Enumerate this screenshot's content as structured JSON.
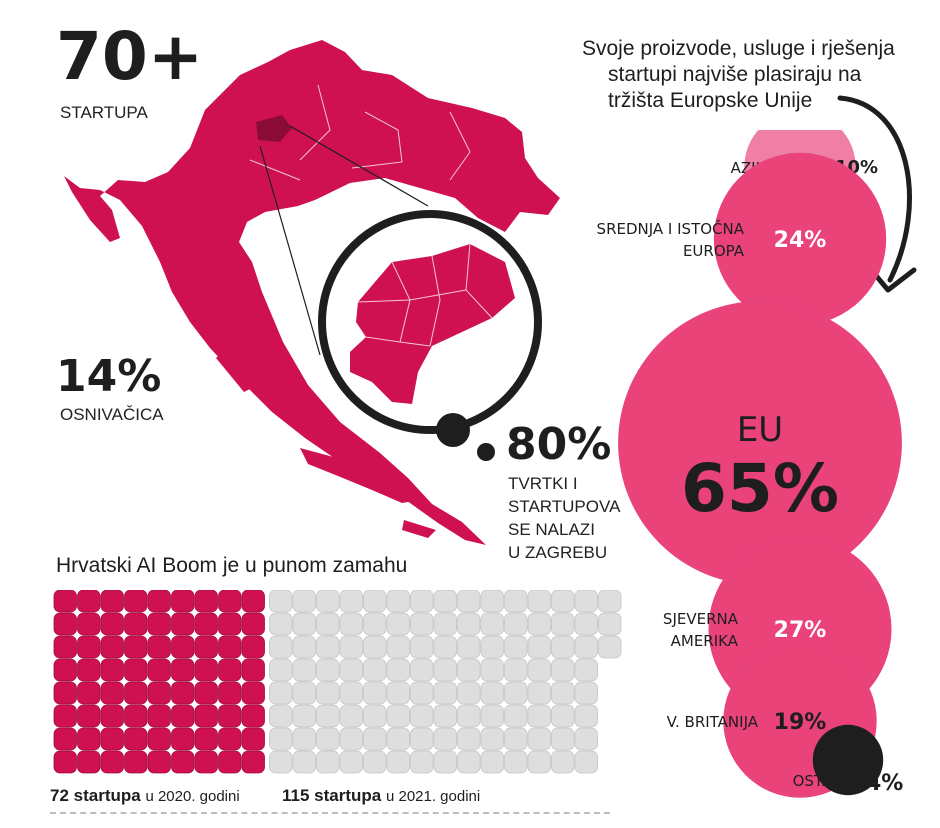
{
  "startups": {
    "value": "70+",
    "label": "STARTUPA"
  },
  "founders": {
    "value": "14%",
    "label": "OSNIVAČICA"
  },
  "zagreb": {
    "value": "80%",
    "lines": [
      "TVRTKI I",
      "STARTUPOVA",
      "SE NALAZI",
      "U ZAGREBU"
    ]
  },
  "markets_note": [
    "Svoje proizvode, usluge i rješenja",
    "startupi najviše plasiraju na",
    "tržišta Europske Unije"
  ],
  "waffle": {
    "title": "Hrvatski AI Boom je u punom zamahu"
  },
  "colors": {
    "accent": "#cf1152",
    "bubble": "#e9437a",
    "bubble_light": "#ef7fa4",
    "empty_cell": "#dedede",
    "dark": "#1e1e1e"
  },
  "chart_data": [
    {
      "type": "bubble",
      "series": [
        {
          "name": "AZIJA",
          "value": 10,
          "label": "10%",
          "label_lines": [
            "AZIJA"
          ]
        },
        {
          "name": "SREDNJA I ISTOČNA EUROPA",
          "value": 24,
          "label": "24%",
          "label_lines": [
            "SREDNJA I ISTOČNA",
            "EUROPA"
          ]
        },
        {
          "name": "EU",
          "value": 65,
          "label": "65%",
          "label_lines": [
            "EU"
          ]
        },
        {
          "name": "SJEVERNA AMERIKA",
          "value": 27,
          "label": "27%",
          "label_lines": [
            "SJEVERNA",
            "AMERIKA"
          ]
        },
        {
          "name": "V. BRITANIJA",
          "value": 19,
          "label": "19%",
          "label_lines": [
            "V. BRITANIJA"
          ]
        },
        {
          "name": "OSTALI",
          "value": 4,
          "label": "4%",
          "label_lines": [
            "OSTALI"
          ]
        }
      ]
    },
    {
      "type": "waffle",
      "title": "Hrvatski AI Boom je u punom zamahu",
      "series": [
        {
          "name": "2020",
          "value": 72,
          "count_text": "72 startupa",
          "suffix": "u 2020. godini"
        },
        {
          "name": "2021",
          "value": 115,
          "count_text": "115 startupa",
          "suffix": "u 2021. godini"
        }
      ]
    }
  ]
}
